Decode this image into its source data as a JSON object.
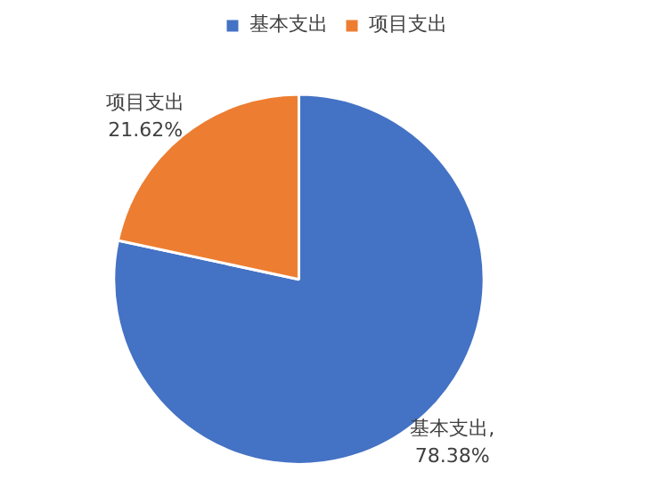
{
  "chart_data": {
    "type": "pie",
    "categories": [
      "基本支出",
      "项目支出"
    ],
    "values": [
      78.38,
      21.62
    ],
    "colors": [
      "#4472c4",
      "#ed7d31"
    ],
    "value_labels": [
      "基本支出,\n78.38%",
      "项目支出\n21.62%"
    ],
    "legend": "top"
  }
}
